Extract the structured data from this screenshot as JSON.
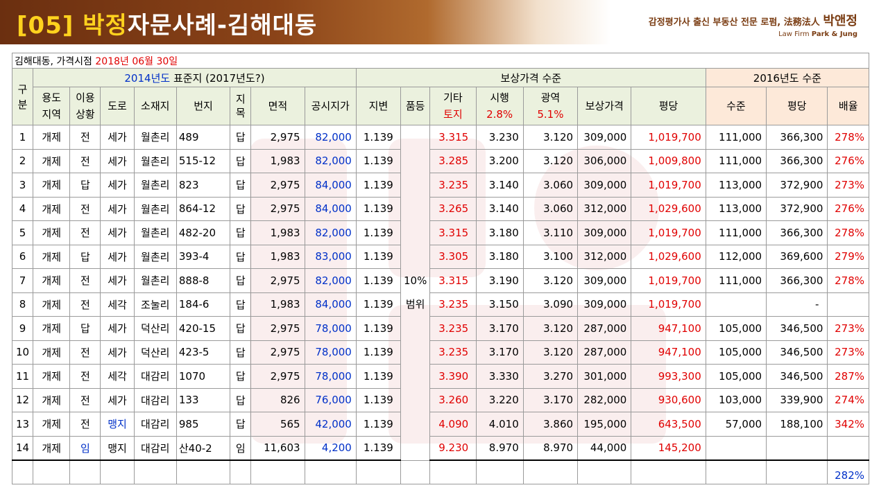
{
  "header": {
    "title_code": "[05]",
    "title_name": "박정",
    "title_rest": "자문사례-김해대동",
    "brand_tagline": "감정평가사 출신 부동산 전문 로펌, 法務法人 ",
    "brand_name": "박앤정",
    "brand_sub_prefix": "Law Firm ",
    "brand_sub_name": "Park & Jung"
  },
  "caption": {
    "prefix": "김해대동, 가격시점 ",
    "date": "2018년 06월 30일"
  },
  "table": {
    "group_headers": {
      "gubun": "구\n분",
      "standard_year": "2014년도",
      "standard_rest": " 표준지 (2017년도?)",
      "compensation": "보상가격 수준",
      "level2016": "2016년도 수준"
    },
    "col_headers": {
      "use_zone": "용도\n지역",
      "use_status": "이용\n상황",
      "road": "도로",
      "location": "소재지",
      "lot": "번지",
      "category": "지\n목",
      "area": "면적",
      "official_price": "공시지가",
      "land_change": "지변",
      "quality": "품등",
      "other_top": "기타",
      "other_bottom": "토지",
      "city_top": "시행",
      "city_bottom": "2.8%",
      "metro_top": "광역",
      "metro_bottom": "5.1%",
      "comp_price": "보상가격",
      "per_pyeong": "평당",
      "level": "수준",
      "level_per_pyeong": "평당",
      "multiple": "배율"
    },
    "quality_merged": "10%\n범위",
    "rows": [
      {
        "no": "1",
        "zone": "개제",
        "use": "전",
        "road": "세가",
        "loc": "월촌리",
        "lot": "489",
        "cat": "답",
        "area": "2,975",
        "official": "82,000",
        "chg": "1.139",
        "other": "3.315",
        "city": "3.230",
        "metro": "3.120",
        "comp": "309,000",
        "pp": "1,019,700",
        "lvl": "111,000",
        "lvlpp": "366,300",
        "mult": "278%"
      },
      {
        "no": "2",
        "zone": "개제",
        "use": "전",
        "road": "세가",
        "loc": "월촌리",
        "lot": "515-12",
        "cat": "답",
        "area": "1,983",
        "official": "82,000",
        "chg": "1.139",
        "other": "3.285",
        "city": "3.200",
        "metro": "3.120",
        "comp": "306,000",
        "pp": "1,009,800",
        "lvl": "111,000",
        "lvlpp": "366,300",
        "mult": "276%"
      },
      {
        "no": "3",
        "zone": "개제",
        "use": "답",
        "road": "세가",
        "loc": "월촌리",
        "lot": "823",
        "cat": "답",
        "area": "2,975",
        "official": "84,000",
        "chg": "1.139",
        "other": "3.235",
        "city": "3.140",
        "metro": "3.060",
        "comp": "309,000",
        "pp": "1,019,700",
        "lvl": "113,000",
        "lvlpp": "372,900",
        "mult": "273%"
      },
      {
        "no": "4",
        "zone": "개제",
        "use": "전",
        "road": "세가",
        "loc": "월촌리",
        "lot": "864-12",
        "cat": "답",
        "area": "2,975",
        "official": "84,000",
        "chg": "1.139",
        "other": "3.265",
        "city": "3.140",
        "metro": "3.060",
        "comp": "312,000",
        "pp": "1,029,600",
        "lvl": "113,000",
        "lvlpp": "372,900",
        "mult": "276%"
      },
      {
        "no": "5",
        "zone": "개제",
        "use": "전",
        "road": "세가",
        "loc": "월촌리",
        "lot": "482-20",
        "cat": "답",
        "area": "1,983",
        "official": "82,000",
        "chg": "1.139",
        "other": "3.315",
        "city": "3.180",
        "metro": "3.110",
        "comp": "309,000",
        "pp": "1,019,700",
        "lvl": "111,000",
        "lvlpp": "366,300",
        "mult": "278%"
      },
      {
        "no": "6",
        "zone": "개제",
        "use": "답",
        "road": "세가",
        "loc": "월촌리",
        "lot": "393-4",
        "cat": "답",
        "area": "1,983",
        "official": "83,000",
        "chg": "1.139",
        "other": "3.305",
        "city": "3.180",
        "metro": "3.100",
        "comp": "312,000",
        "pp": "1,029,600",
        "lvl": "112,000",
        "lvlpp": "369,600",
        "mult": "279%"
      },
      {
        "no": "7",
        "zone": "개제",
        "use": "전",
        "road": "세가",
        "loc": "월촌리",
        "lot": "888-8",
        "cat": "답",
        "area": "2,975",
        "official": "82,000",
        "chg": "1.139",
        "other": "3.315",
        "city": "3.190",
        "metro": "3.120",
        "comp": "309,000",
        "pp": "1,019,700",
        "lvl": "111,000",
        "lvlpp": "366,300",
        "mult": "278%"
      },
      {
        "no": "8",
        "zone": "개제",
        "use": "전",
        "road": "세각",
        "loc": "조눌리",
        "lot": "184-6",
        "cat": "답",
        "area": "1,983",
        "official": "84,000",
        "chg": "1.139",
        "other": "3.235",
        "city": "3.150",
        "metro": "3.090",
        "comp": "309,000",
        "pp": "1,019,700",
        "lvl": "",
        "lvlpp": "-",
        "mult": ""
      },
      {
        "no": "9",
        "zone": "개제",
        "use": "답",
        "road": "세가",
        "loc": "덕산리",
        "lot": "420-15",
        "cat": "답",
        "area": "2,975",
        "official": "78,000",
        "chg": "1.139",
        "other": "3.235",
        "city": "3.170",
        "metro": "3.120",
        "comp": "287,000",
        "pp": "947,100",
        "lvl": "105,000",
        "lvlpp": "346,500",
        "mult": "273%"
      },
      {
        "no": "10",
        "zone": "개제",
        "use": "전",
        "road": "세가",
        "loc": "덕산리",
        "lot": "423-5",
        "cat": "답",
        "area": "2,975",
        "official": "78,000",
        "chg": "1.139",
        "other": "3.235",
        "city": "3.170",
        "metro": "3.120",
        "comp": "287,000",
        "pp": "947,100",
        "lvl": "105,000",
        "lvlpp": "346,500",
        "mult": "273%"
      },
      {
        "no": "11",
        "zone": "개제",
        "use": "전",
        "road": "세각",
        "loc": "대감리",
        "lot": "1070",
        "cat": "답",
        "area": "2,975",
        "official": "78,000",
        "chg": "1.139",
        "other": "3.390",
        "city": "3.330",
        "metro": "3.270",
        "comp": "301,000",
        "pp": "993,300",
        "lvl": "105,000",
        "lvlpp": "346,500",
        "mult": "287%"
      },
      {
        "no": "12",
        "zone": "개제",
        "use": "전",
        "road": "세가",
        "loc": "대감리",
        "lot": "133",
        "cat": "답",
        "area": "826",
        "official": "76,000",
        "chg": "1.139",
        "other": "3.260",
        "city": "3.220",
        "metro": "3.170",
        "comp": "282,000",
        "pp": "930,600",
        "lvl": "103,000",
        "lvlpp": "339,900",
        "mult": "274%"
      },
      {
        "no": "13",
        "zone": "개제",
        "use": "전",
        "road": "맹지",
        "road_blue": true,
        "loc": "대감리",
        "lot": "985",
        "cat": "답",
        "area": "565",
        "official": "42,000",
        "chg": "1.139",
        "other": "4.090",
        "city": "4.010",
        "metro": "3.860",
        "comp": "195,000",
        "pp": "643,500",
        "lvl": "57,000",
        "lvlpp": "188,100",
        "mult": "342%"
      },
      {
        "no": "14",
        "zone": "개제",
        "use": "임",
        "use_blue": true,
        "road": "맹지",
        "loc": "대감리",
        "lot": "산40-2",
        "cat": "임",
        "area": "11,603",
        "official": "4,200",
        "chg": "1.139",
        "other": "9.230",
        "city": "8.970",
        "metro": "8.970",
        "comp": "44,000",
        "pp": "145,200",
        "lvl": "",
        "lvlpp": "",
        "mult": ""
      }
    ],
    "average_multiple": "282%"
  }
}
